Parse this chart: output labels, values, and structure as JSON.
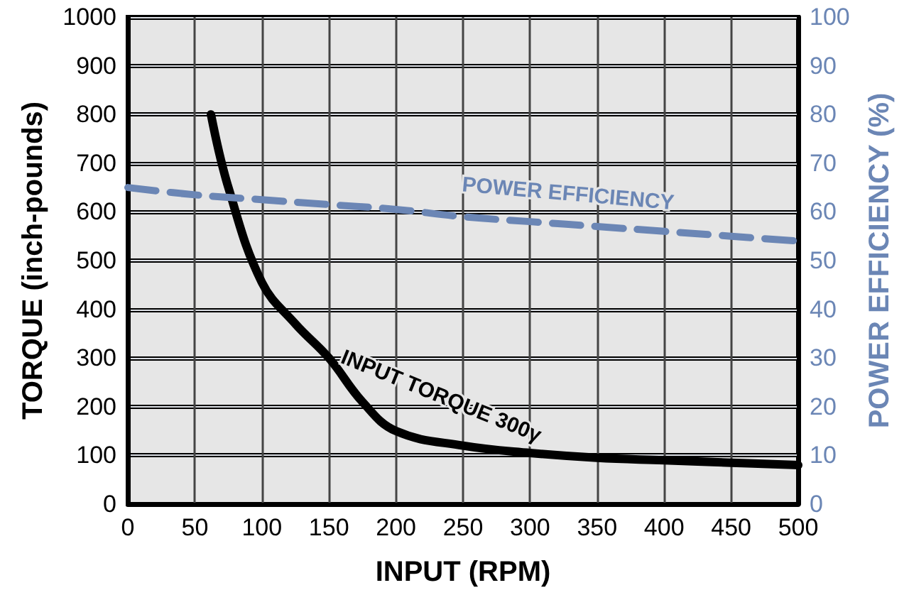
{
  "chart_data": {
    "type": "line",
    "xlabel": "INPUT (RPM)",
    "ylabel": "TORQUE (inch-pounds)",
    "y2label": "POWER EFFICIENCY (%)",
    "xlim": [
      0,
      500
    ],
    "xticks": [
      0,
      50,
      100,
      150,
      200,
      250,
      300,
      350,
      400,
      450,
      500
    ],
    "ylim": [
      0,
      1000
    ],
    "yticks": [
      0,
      100,
      200,
      300,
      400,
      500,
      600,
      700,
      800,
      900,
      1000
    ],
    "y2lim": [
      0,
      100
    ],
    "y2ticks": [
      0,
      10,
      20,
      30,
      40,
      50,
      60,
      70,
      80,
      90,
      100
    ],
    "grid": true,
    "legend": false,
    "marker": "none",
    "series": [
      {
        "name": "INPUT TORQUE 300γ",
        "color": "#000000",
        "line_style": "solid",
        "x": [
          62,
          75,
          100,
          125,
          150,
          175,
          200,
          250,
          300,
          350,
          400,
          450,
          500
        ],
        "values": [
          800,
          650,
          455,
          370,
          300,
          210,
          150,
          120,
          105,
          95,
          90,
          85,
          80
        ]
      },
      {
        "name": "POWER EFFICIENCY",
        "color": "#6b86b5",
        "line_style": "dashed",
        "axis": "y2",
        "x": [
          0,
          50,
          100,
          150,
          200,
          250,
          300,
          350,
          400,
          450,
          500
        ],
        "values": [
          65,
          63.5,
          62.5,
          61.5,
          60.5,
          59,
          58,
          57,
          56,
          55,
          54
        ]
      }
    ]
  }
}
